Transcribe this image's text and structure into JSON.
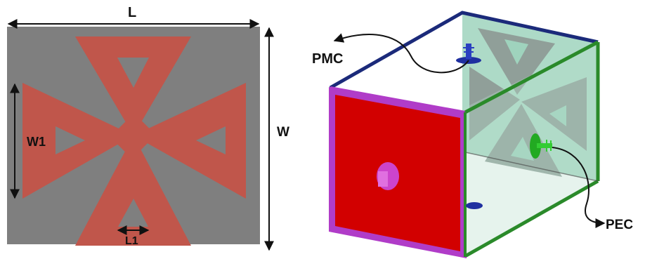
{
  "left_panel": {
    "dimension_labels": {
      "length": "L",
      "width": "W",
      "inner_width": "W1",
      "inner_length": "L1"
    }
  },
  "right_panel": {
    "boundary_labels": {
      "pmc": "PMC",
      "pec": "PEC"
    }
  },
  "colors": {
    "substrate": "#7f7f7f",
    "patch": "#c0564b",
    "front_face": "#d20000",
    "front_border": "#b03cc8",
    "back_face": "#9fd3bd",
    "green_edge": "#2a8a2a",
    "blue_edge": "#1b2a7a",
    "port_pec": "#22aa22",
    "port_pmc": "#1f2fa0",
    "port_front": "#cc44cc"
  }
}
